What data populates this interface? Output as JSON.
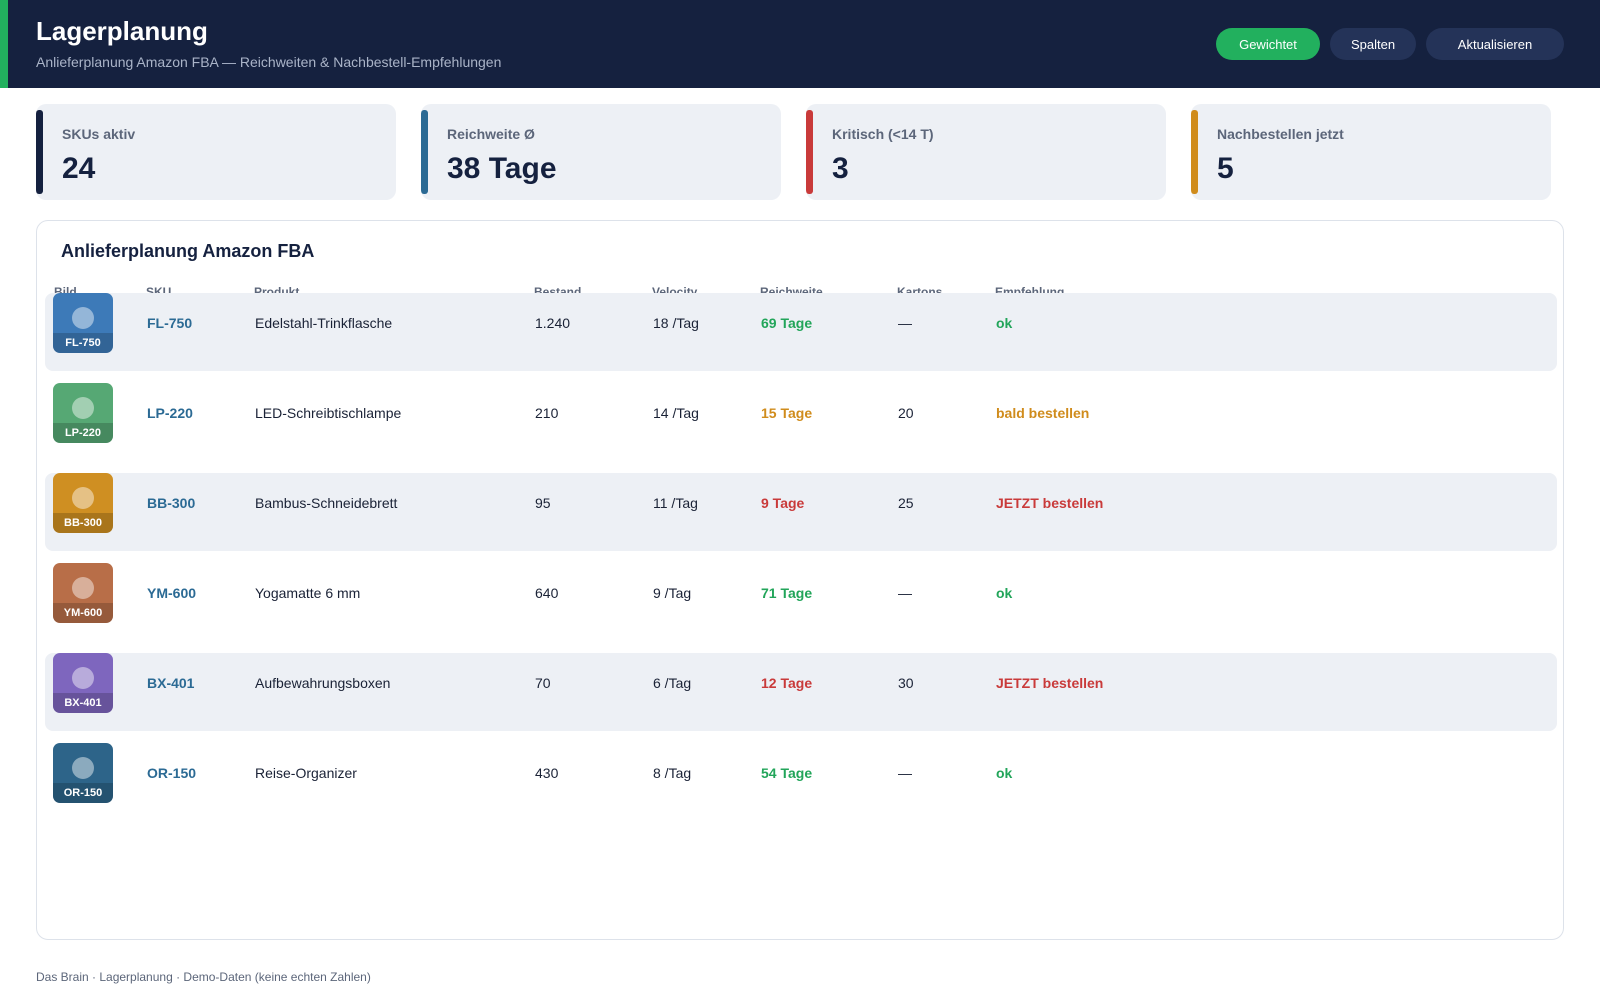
{
  "header": {
    "title": "Lagerplanung",
    "subtitle": "Anlieferplanung Amazon FBA — Reichweiten & Nachbestell-Empfehlungen",
    "buttons": {
      "weighted": "Gewichtet",
      "columns": "Spalten",
      "refresh": "Aktualisieren"
    }
  },
  "kpis": [
    {
      "label": "SKUs aktiv",
      "value": "24",
      "color": "#15213f"
    },
    {
      "label": "Reichweite Ø",
      "value": "38 Tage",
      "color": "#2b6a94"
    },
    {
      "label": "Kritisch (<14 T)",
      "value": "3",
      "color": "#c93a3a"
    },
    {
      "label": "Nachbestellen jetzt",
      "value": "5",
      "color": "#d08c1c"
    }
  ],
  "table": {
    "title": "Anlieferplanung Amazon FBA",
    "columns": [
      "Bild",
      "SKU",
      "Produkt",
      "Bestand",
      "Velocity",
      "Reichweite",
      "Kartons",
      "Empfehlung"
    ],
    "rows": [
      {
        "sku": "FL-750",
        "product": "Edelstahl-Trinkflasche",
        "stock": "1.240",
        "velocity": "18 /Tag",
        "range": "69 Tage",
        "cartons": "—",
        "recommendation": "ok",
        "status": "ok",
        "thumb_color": "#3d7ab8"
      },
      {
        "sku": "LP-220",
        "product": "LED-Schreibtischlampe",
        "stock": "210",
        "velocity": "14 /Tag",
        "range": "15 Tage",
        "cartons": "20",
        "recommendation": "bald bestellen",
        "status": "soon",
        "thumb_color": "#56a874"
      },
      {
        "sku": "BB-300",
        "product": "Bambus-Schneidebrett",
        "stock": "95",
        "velocity": "11 /Tag",
        "range": "9 Tage",
        "cartons": "25",
        "recommendation": "JETZT bestellen",
        "status": "now",
        "thumb_color": "#cf8f22"
      },
      {
        "sku": "YM-600",
        "product": "Yogamatte 6 mm",
        "stock": "640",
        "velocity": "9 /Tag",
        "range": "71 Tage",
        "cartons": "—",
        "recommendation": "ok",
        "status": "ok",
        "thumb_color": "#b86e48"
      },
      {
        "sku": "BX-401",
        "product": "Aufbewahrungsboxen",
        "stock": "70",
        "velocity": "6 /Tag",
        "range": "12 Tage",
        "cartons": "30",
        "recommendation": "JETZT bestellen",
        "status": "now",
        "thumb_color": "#7e66be"
      },
      {
        "sku": "OR-150",
        "product": "Reise-Organizer",
        "stock": "430",
        "velocity": "8 /Tag",
        "range": "54 Tage",
        "cartons": "—",
        "recommendation": "ok",
        "status": "ok",
        "thumb_color": "#2d6489"
      }
    ]
  },
  "status_colors": {
    "ok": "#22a55a",
    "soon": "#d08c1c",
    "now": "#c93a3a"
  },
  "footer": "Das Brain · Lagerplanung · Demo-Daten (keine echten Zahlen)"
}
